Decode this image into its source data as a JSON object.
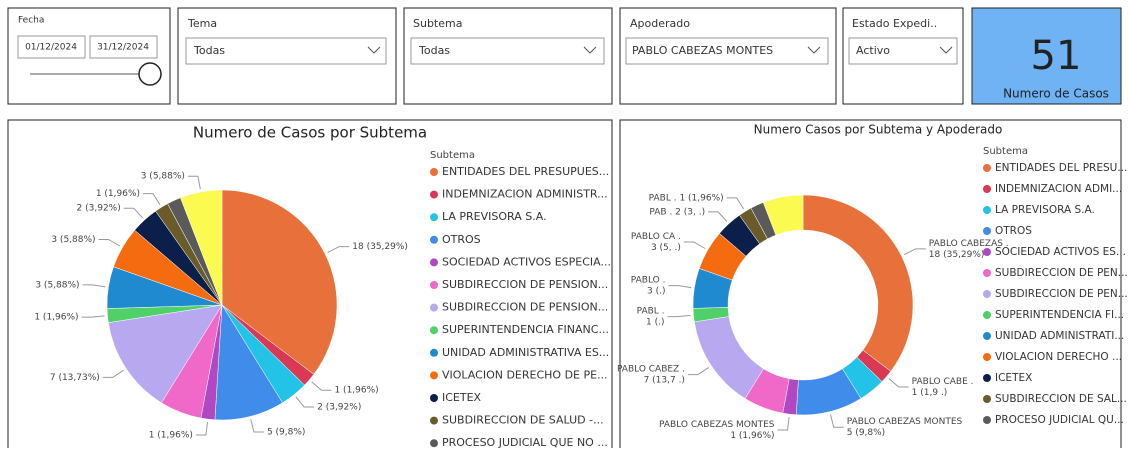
{
  "filters": {
    "fecha": {
      "title": "Fecha",
      "start": "01/12/2024",
      "end": "31/12/2024"
    },
    "tema": {
      "title": "Tema",
      "value": "Todas"
    },
    "subtema": {
      "title": "Subtema",
      "value": "Todas"
    },
    "apoderado": {
      "title": "Apoderado",
      "value": "PABLO CABEZAS MONTES"
    },
    "estado": {
      "title": "Estado Expedi..",
      "value": "Activo"
    }
  },
  "card": {
    "value": "51",
    "label": "Numero de Casos"
  },
  "chart_data": [
    {
      "type": "pie",
      "title": "Numero de Casos por Subtema",
      "legend_title": "Subtema",
      "legend": "right",
      "categories": [
        "ENTIDADES DEL PRESUPUES...",
        "INDEMNIZACION ADMINISTR...",
        "LA PREVISORA S.A.",
        "OTROS",
        "SOCIEDAD ACTIVOS ESPECIA...",
        "SUBDIRECCION DE PENSION...",
        "SUBDIRECCION DE PENSION...",
        "SUPERINTENDENCIA FINANC...",
        "UNIDAD ADMINISTRATIVA ES...",
        "VIOLACION DERECHO DE PE...",
        "ICETEX",
        "SUBDIRECCION DE SALUD -...",
        "PROCESO JUDICIAL QUE NO ...",
        null
      ],
      "values": [
        18,
        1,
        2,
        5,
        1,
        3,
        7,
        1,
        3,
        3,
        2,
        1,
        1,
        3
      ],
      "value_labels": [
        "18 (35,29%)",
        "1 (1,96%)",
        "2 (3,92%)",
        "5 (9,8%)",
        "1 (1,96%)",
        null,
        "7 (13,73%)",
        "1 (1,96%)",
        "3 (5,88%)",
        "3 (5,88%)",
        "2 (3,92%)",
        "1 (1,96%)",
        null,
        "3 (5,88%)"
      ],
      "colors": [
        "#e8703a",
        "#d93954",
        "#22c3e6",
        "#3f8ceb",
        "#b048c4",
        "#f068c8",
        "#b8a8f0",
        "#4fd068",
        "#1f8ad0",
        "#f56c10",
        "#0b1f4a",
        "#6b5b2a",
        "#5a5a5a",
        "#fafa50"
      ]
    },
    {
      "type": "donut",
      "title": "Numero Casos por Subtema y Apoderado",
      "legend_title": "Subtema",
      "legend": "right",
      "categories": [
        "ENTIDADES DEL PRESU...",
        "INDEMNIZACION ADMI...",
        "LA PREVISORA S.A.",
        "OTROS",
        "SOCIEDAD ACTIVOS ES...",
        "SUBDIRECCION DE PEN...",
        "SUBDIRECCION DE PEN...",
        "SUPERINTENDENCIA FI...",
        "UNIDAD ADMINISTRATI...",
        "VIOLACION DERECHO ...",
        "ICETEX",
        "SUBDIRECCION DE SAL...",
        "PROCESO JUDICIAL QU...",
        null
      ],
      "values": [
        18,
        1,
        2,
        5,
        1,
        3,
        7,
        1,
        3,
        3,
        2,
        1,
        1,
        3
      ],
      "value_labels": [
        [
          "PABLO CABEZAS .",
          "18 (35,29%)"
        ],
        [
          "PABLO CABE .",
          "1 (1,9 .)"
        ],
        null,
        [
          "PABLO CABEZAS MONTES",
          "5 (9,8%)"
        ],
        [
          "PABLO CABEZAS MONTES",
          "1 (1,96%)"
        ],
        null,
        [
          "PABLO CABEZ .",
          "7 (13,7 .)"
        ],
        [
          "PABL .",
          "1 (.)"
        ],
        [
          "PABLO .",
          "3 (.)"
        ],
        [
          "PABLO CA .",
          "3 (5, .)"
        ],
        [
          "PAB . 2 (3, .)"
        ],
        [
          "PABL . 1 (1,96%)"
        ],
        null,
        null
      ],
      "colors": [
        "#e8703a",
        "#d93954",
        "#22c3e6",
        "#3f8ceb",
        "#b048c4",
        "#f068c8",
        "#b8a8f0",
        "#4fd068",
        "#1f8ad0",
        "#f56c10",
        "#0b1f4a",
        "#6b5b2a",
        "#5a5a5a",
        "#fafa50"
      ]
    }
  ]
}
